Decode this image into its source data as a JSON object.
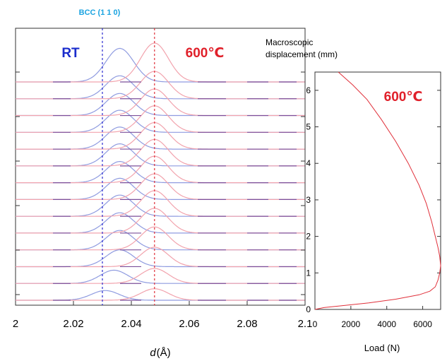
{
  "chart_data": [
    {
      "type": "line",
      "title": "",
      "xlabel_italic": "d",
      "xlabel_unit": "(Å)",
      "ylabel": "",
      "xlim": [
        2.0,
        2.1
      ],
      "x_ticks": [
        "2",
        "2.02",
        "2.04",
        "2.06",
        "2.08",
        "2.1"
      ],
      "grid": false,
      "n_profiles": 14,
      "labels": {
        "left": "RT",
        "right": "600℃",
        "reference": "BCC (1 1 0)"
      },
      "reference_lines": [
        {
          "name": "BCC (1 1 0)",
          "x": 2.03,
          "color": "#2b2bd0",
          "style": "dashed"
        },
        {
          "name": "600℃",
          "x": 2.048,
          "color": "#e0303a",
          "style": "dashed"
        }
      ],
      "series": [
        {
          "label": "RT",
          "color": "#8f9be0",
          "peak_x": [
            2.031,
            2.034,
            2.036,
            2.036,
            2.036,
            2.036,
            2.036,
            2.036,
            2.036,
            2.036,
            2.036,
            2.036,
            2.036,
            2.036
          ],
          "peak_height": [
            0.55,
            0.75,
            0.95,
            1.1,
            1.15,
            1.2,
            1.2,
            1.2,
            1.25,
            1.25,
            1.25,
            1.25,
            1.3,
            1.9
          ]
        },
        {
          "label": "600℃",
          "color": "#f2a3ad",
          "peak_x": [
            2.048,
            2.048,
            2.048,
            2.048,
            2.048,
            2.048,
            2.048,
            2.048,
            2.048,
            2.048,
            2.048,
            2.048,
            2.048,
            2.048
          ],
          "peak_height": [
            0.65,
            0.85,
            1.1,
            1.3,
            1.4,
            1.45,
            1.45,
            1.5,
            1.5,
            1.5,
            1.5,
            1.5,
            1.55,
            2.2
          ]
        }
      ],
      "peak_width": 0.0048
    },
    {
      "type": "line",
      "title": "",
      "label": "600℃",
      "xlabel": "Load (N)",
      "ylabel_line1": "Macroscopic",
      "ylabel_line2": "displacement (mm)",
      "xlim": [
        0,
        7000
      ],
      "ylim": [
        0,
        6.5
      ],
      "x_ticks": [
        "0",
        "2000",
        "4000",
        "6000"
      ],
      "y_ticks": [
        "0",
        "1",
        "2",
        "3",
        "4",
        "5",
        "6"
      ],
      "grid": false,
      "series": [
        {
          "name": "",
          "color": "#e0303a",
          "x": [
            0,
            500,
            1500,
            3000,
            4500,
            5800,
            6400,
            6700,
            6850,
            6950,
            7000,
            6950,
            6850,
            6700,
            6500,
            6200,
            5800,
            5200,
            4500,
            3700,
            2900,
            2100,
            1300
          ],
          "y": [
            0.0,
            0.05,
            0.1,
            0.18,
            0.28,
            0.4,
            0.5,
            0.62,
            0.8,
            1.0,
            1.2,
            1.45,
            1.7,
            2.0,
            2.4,
            2.9,
            3.4,
            4.0,
            4.6,
            5.2,
            5.75,
            6.15,
            6.5
          ]
        }
      ]
    }
  ]
}
